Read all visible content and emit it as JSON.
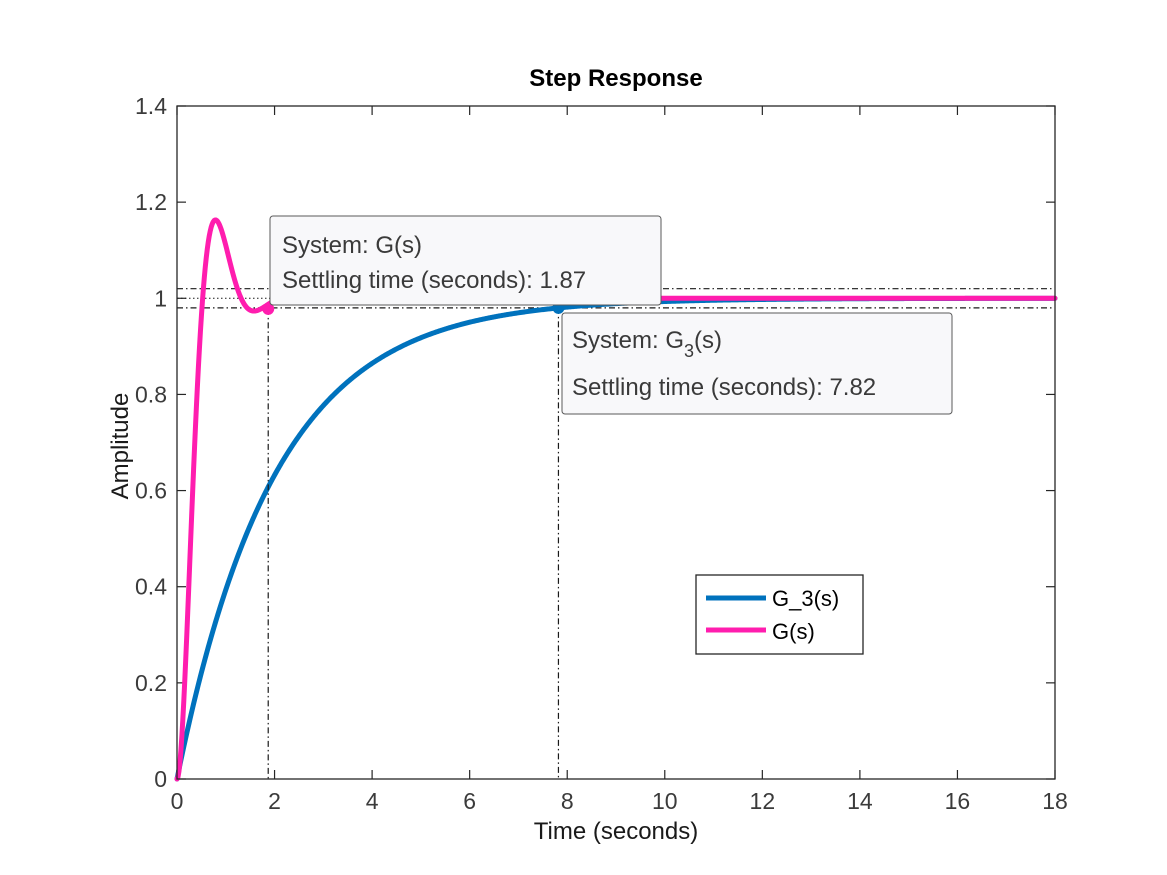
{
  "chart_data": {
    "type": "line",
    "title": "Step Response",
    "xlabel": "Time (seconds)",
    "ylabel": "Amplitude",
    "xlim": [
      0,
      18
    ],
    "ylim": [
      0,
      1.4
    ],
    "xticks": [
      0,
      2,
      4,
      6,
      8,
      10,
      12,
      14,
      16,
      18
    ],
    "yticks": [
      0,
      0.2,
      0.4,
      0.6,
      0.8,
      1,
      1.2,
      1.4
    ],
    "xtick_labels": [
      "0",
      "2",
      "4",
      "6",
      "8",
      "10",
      "12",
      "14",
      "16",
      "18"
    ],
    "ytick_labels": [
      "0",
      "0.2",
      "0.4",
      "0.6",
      "0.8",
      "1",
      "1.2",
      "1.4"
    ],
    "settling_band": [
      0.98,
      1.02
    ],
    "series": [
      {
        "name": "G_3(s)",
        "color": "#0072BD",
        "model": "first_order",
        "tau": 2.0,
        "settling_time": 7.82,
        "settling_value": 0.98
      },
      {
        "name": "G(s)",
        "color": "#FF1DAE",
        "model": "second_order_underdamped",
        "zeta": 0.5,
        "wn": 4.6,
        "peak_time": 0.79,
        "peak_value": 1.21,
        "settling_time": 1.87,
        "settling_value": 0.978
      }
    ],
    "annotations": [
      {
        "series": "G(s)",
        "line1_prefix": "System: G(s)",
        "line2": "Settling time (seconds): 1.87"
      },
      {
        "series": "G_3(s)",
        "line1_prefix": "System: G",
        "line1_sub": "3",
        "line1_suffix": "(s)",
        "line2": "Settling time (seconds): 7.82"
      }
    ],
    "legend": {
      "position": "lower-right",
      "entries": [
        "G_3(s)",
        "G(s)"
      ]
    }
  }
}
